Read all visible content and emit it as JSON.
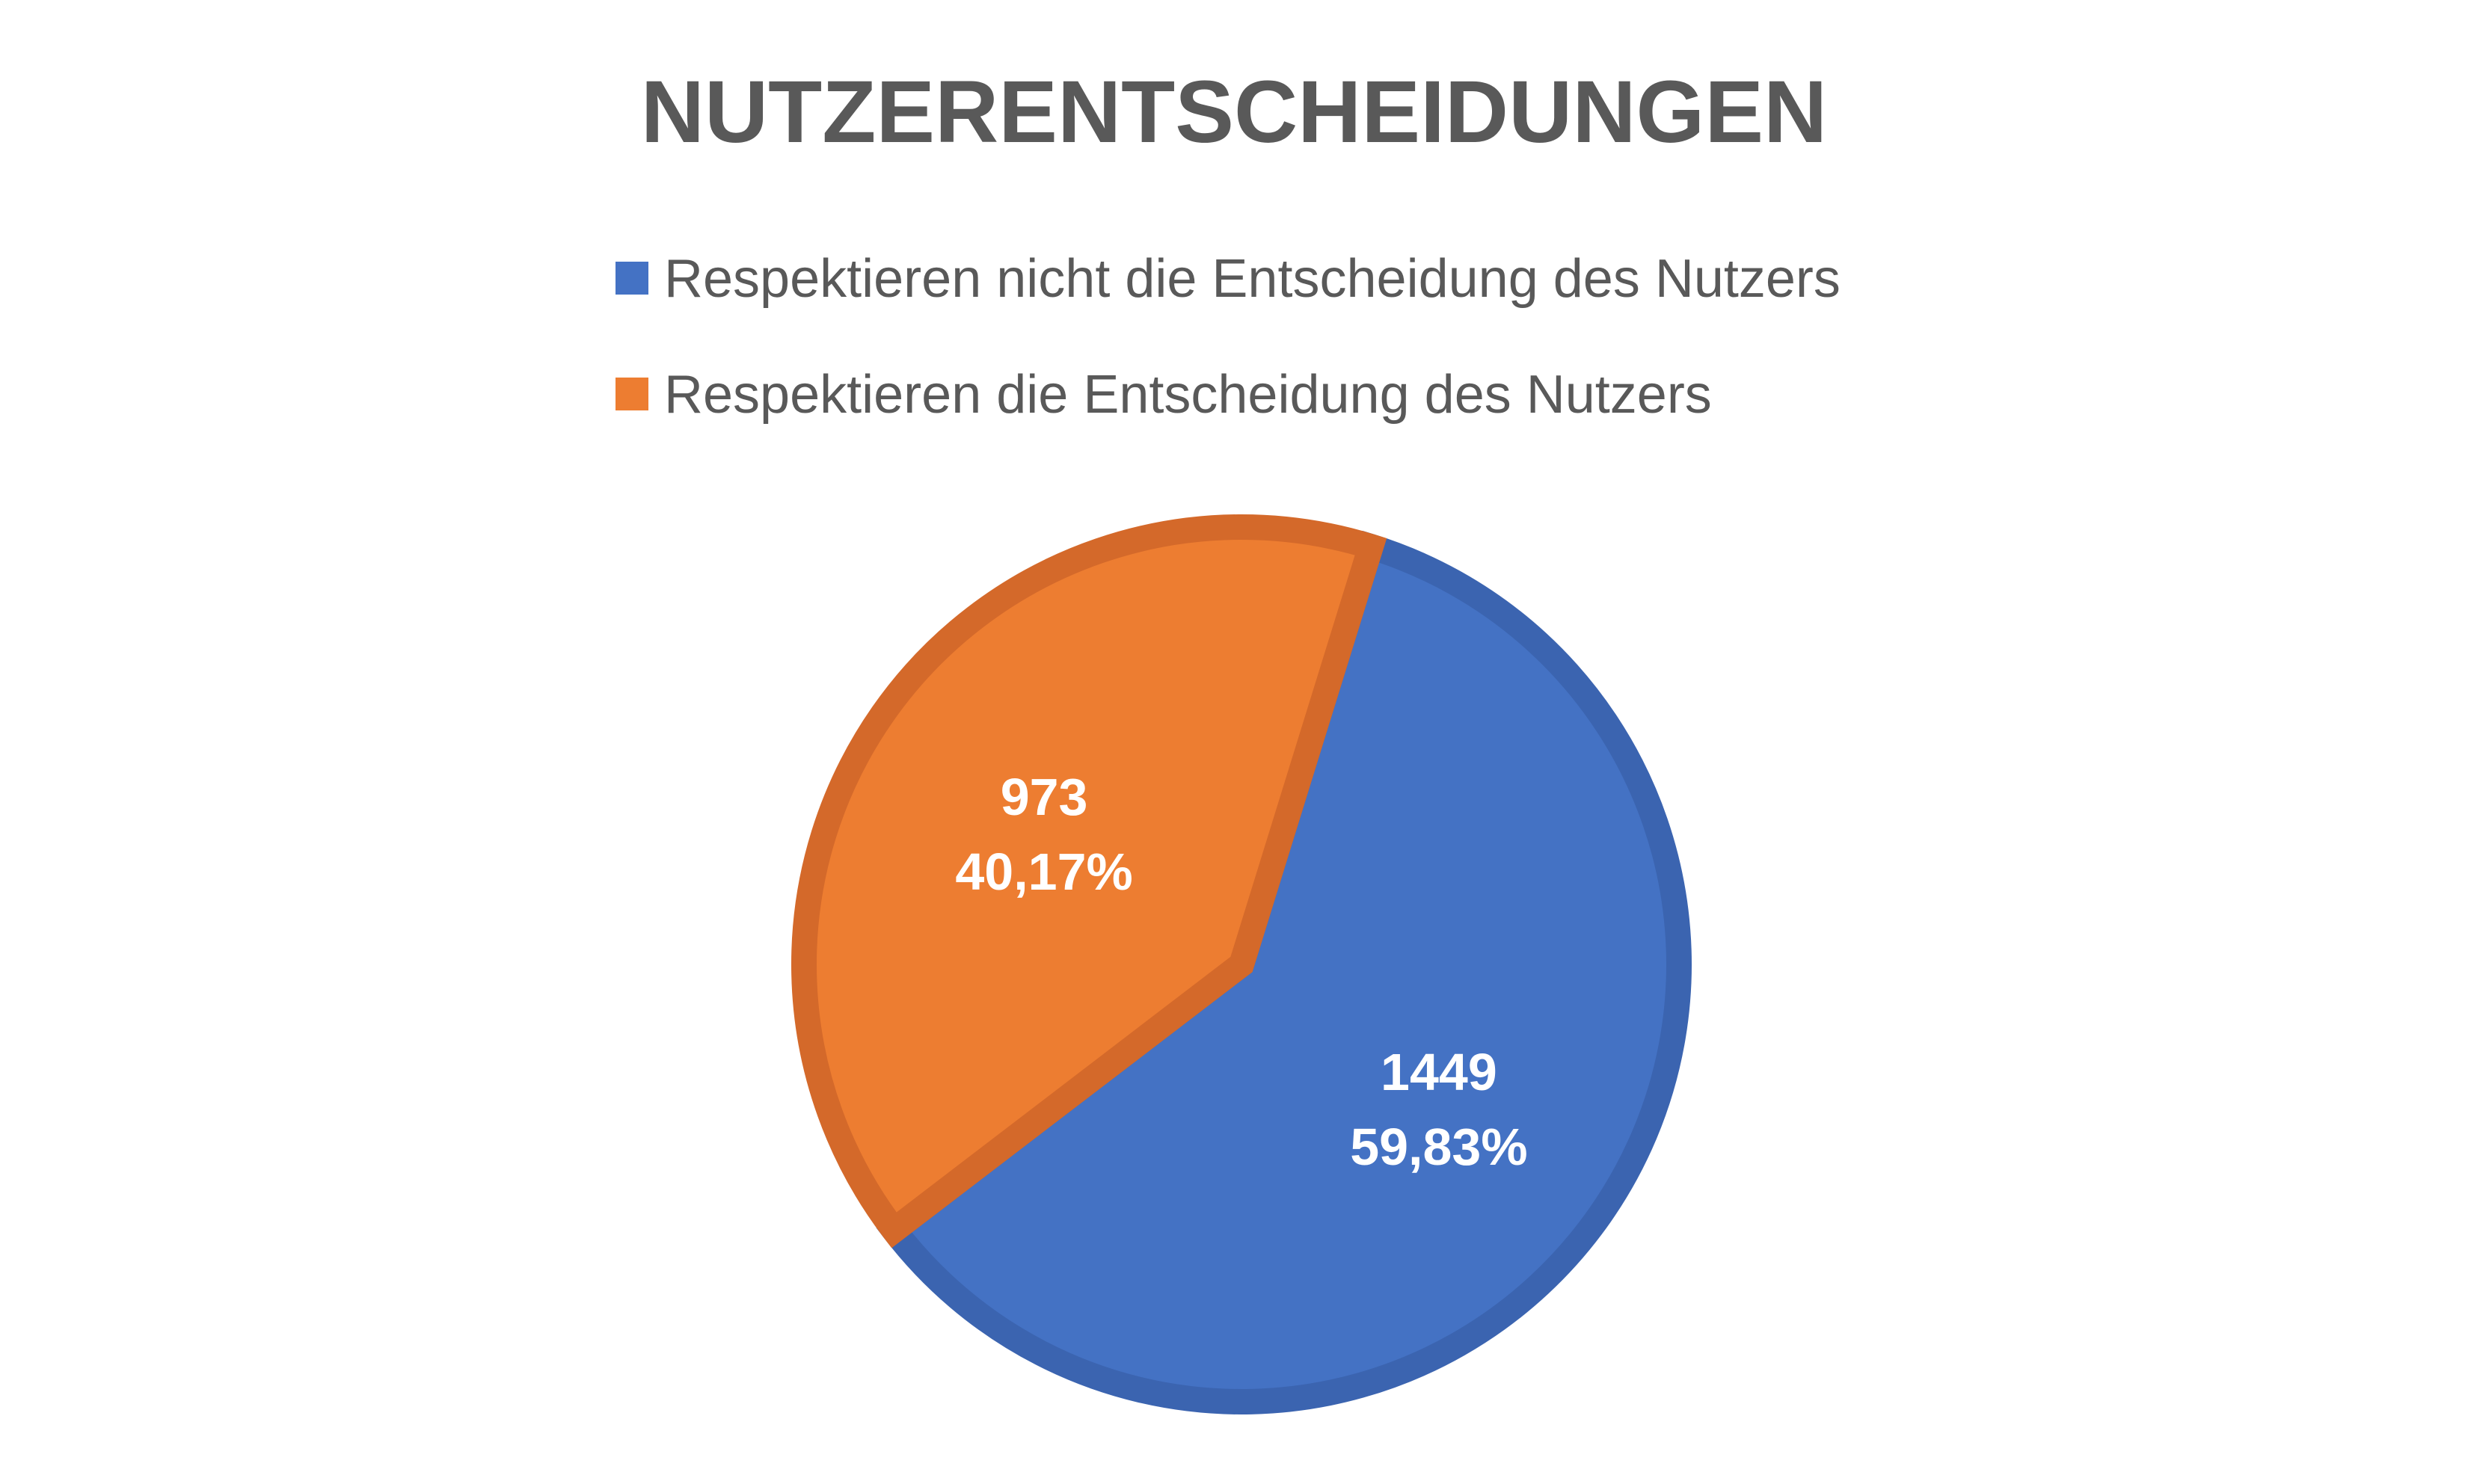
{
  "chart_data": {
    "type": "pie",
    "title": "NUTZERENTSCHEIDUNGEN",
    "legend_position": "top",
    "slices": [
      {
        "name": "Respektieren nicht die Entscheidung des Nutzers",
        "value": 1449,
        "percent_label": "59,83%",
        "color": "#4472C4",
        "border_color": "#3B64B0"
      },
      {
        "name": "Respektieren die Entscheidung des Nutzers",
        "value": 973,
        "percent_label": "40,17%",
        "color": "#ED7D31",
        "border_color": "#D4692A"
      }
    ]
  },
  "colors": {
    "title": "#595959",
    "legend_text": "#595959",
    "label_text": "#FFFFFF"
  }
}
